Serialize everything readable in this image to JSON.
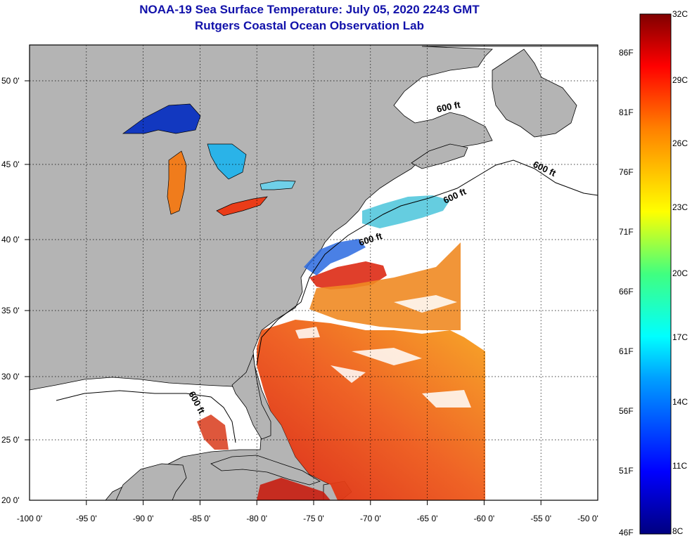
{
  "header": {
    "title": "NOAA-19 Sea Surface Temperature:  July 05, 2020 2243 GMT",
    "subtitle": "Rutgers Coastal Ocean Observation Lab"
  },
  "map": {
    "lon_labels": [
      "-100 0'",
      "-95 0'",
      "-90 0'",
      "-85 0'",
      "-80 0'",
      "-75 0'",
      "-70 0'",
      "-65 0'",
      "-60 0'",
      "-55 0'",
      "-50 0'"
    ],
    "lat_labels": [
      "50 0'",
      "45 0'",
      "40 0'",
      "35 0'",
      "30 0'",
      "25 0'",
      "20 0'"
    ],
    "contour_labels": [
      "600 ft",
      "600 ft",
      "600 ft",
      "600 ft",
      "600 ft"
    ],
    "colors": {
      "land": "#b4b4b4",
      "cloud": "#ffffff",
      "water_warm": "#e8361a",
      "water_mid": "#f28a1e",
      "water_cold": "#1f56d6"
    }
  },
  "colorbar": {
    "fahrenheit_labels": [
      "86F",
      "81F",
      "76F",
      "71F",
      "66F",
      "61F",
      "56F",
      "51F",
      "46F"
    ],
    "celsius_labels": [
      "32C",
      "29C",
      "26C",
      "23C",
      "20C",
      "17C",
      "14C",
      "11C",
      "8C"
    ],
    "range_c": [
      8,
      32
    ],
    "range_f": [
      46,
      90
    ]
  }
}
